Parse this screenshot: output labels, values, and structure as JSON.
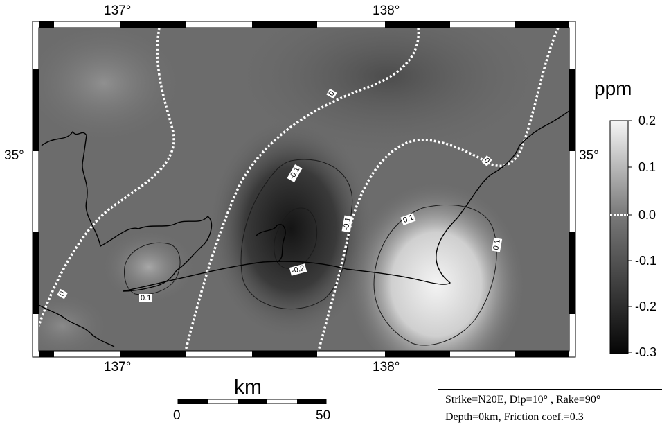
{
  "map": {
    "lon_labels": [
      "137°",
      "138°"
    ],
    "lat_labels": [
      "35°"
    ],
    "contour_labels": [
      "0",
      "0",
      "0",
      "-0.1",
      "-0.1",
      "-0.2",
      "0.1",
      "0.1",
      "0.1"
    ]
  },
  "colorbar": {
    "unit": "ppm",
    "ticks": [
      "0.2",
      "0.1",
      "0.0",
      "-0.1",
      "-0.2",
      "-0.3"
    ],
    "range": [
      -0.3,
      0.2
    ]
  },
  "scale_bar": {
    "unit": "km",
    "ticks": [
      "0",
      "50"
    ]
  },
  "parameters": {
    "line1": "Strike=N20E,   Dip=10°  , Rake=90°",
    "line2": "Depth=0km,   Friction coef.=0.3"
  }
}
